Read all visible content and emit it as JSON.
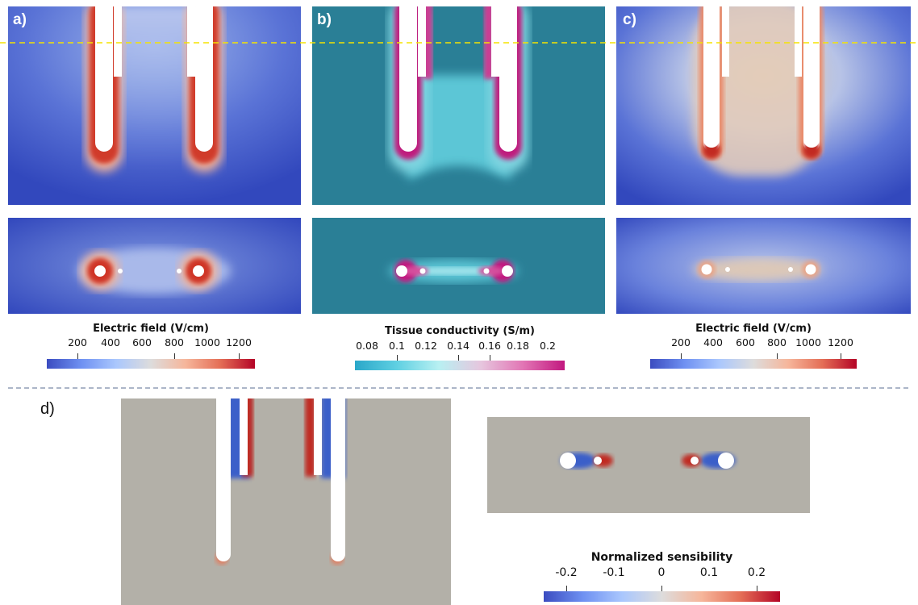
{
  "panels": {
    "a": {
      "label": "a)"
    },
    "b": {
      "label": "b)"
    },
    "c": {
      "label": "c)"
    },
    "d": {
      "label": "d)"
    }
  },
  "colorbars": {
    "field_a": {
      "title": "Electric field (V/cm)",
      "ticks": [
        "200",
        "400",
        "600",
        "800",
        "1000",
        "1200"
      ]
    },
    "conductivity": {
      "title": "Tissue conductivity (S/m)",
      "ticks": [
        "0.08",
        "0.1",
        "0.12",
        "0.14",
        "0.16",
        "0.18",
        "0.2"
      ]
    },
    "field_c": {
      "title": "Electric field (V/cm)",
      "ticks": [
        "200",
        "400",
        "600",
        "800",
        "1000",
        "1200"
      ]
    },
    "sensibility": {
      "title": "Normalized sensibility",
      "ticks": [
        "-0.2",
        "-0.1",
        "0",
        "0.1",
        "0.2"
      ]
    }
  },
  "colors": {
    "field_low": "#3b4cc0",
    "field_high": "#b40426",
    "conductivity_background": "#2a7f96",
    "conductivity_high": "#c2187f",
    "sensibility_background": "#b3b0a8",
    "guide_line": "#f5e400",
    "divider": "#7a8aa6"
  }
}
